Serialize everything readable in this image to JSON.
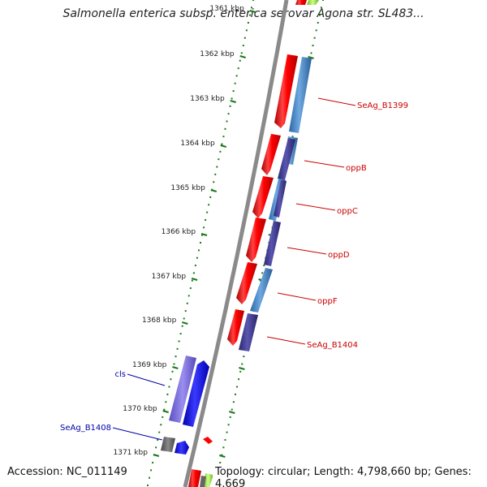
{
  "title": "Salmonella enterica subsp. enterica serovar Agona str. SL483...",
  "footer": {
    "accession_label": "Accession:",
    "accession": "NC_011149",
    "topology_label": "Topology:",
    "topology": "circular",
    "length_label": "Length:",
    "length": "4,798,660 bp",
    "genes_label": "Genes:",
    "genes": "4,669"
  },
  "colors": {
    "backbone": "#8a8a8a",
    "tick": "#1a7a1a",
    "forward_gene": "#ff0000",
    "reverse_gene": "#0000ff",
    "reverse_light": "#4a8fd0",
    "reverse_dark": "#3d3a8c",
    "label_red": "#cc0000",
    "label_blue": "#0000aa",
    "other_gene": "#666666",
    "trna": "#88cc33"
  },
  "ticks": [
    {
      "label": "1361 kbp"
    },
    {
      "label": "1362 kbp"
    },
    {
      "label": "1363 kbp"
    },
    {
      "label": "1364 kbp"
    },
    {
      "label": "1365 kbp"
    },
    {
      "label": "1366 kbp"
    },
    {
      "label": "1367 kbp"
    },
    {
      "label": "1368 kbp"
    },
    {
      "label": "1369 kbp"
    },
    {
      "label": "1370 kbp"
    },
    {
      "label": "1371 kbp"
    }
  ],
  "gene_labels": [
    {
      "text": "SeAg_B1399",
      "strand": "reverse"
    },
    {
      "text": "oppB",
      "strand": "reverse"
    },
    {
      "text": "oppC",
      "strand": "reverse"
    },
    {
      "text": "oppD",
      "strand": "reverse"
    },
    {
      "text": "oppF",
      "strand": "reverse"
    },
    {
      "text": "SeAg_B1404",
      "strand": "reverse"
    },
    {
      "text": "cls",
      "strand": "forward"
    },
    {
      "text": "SeAg_B1408",
      "strand": "forward"
    }
  ]
}
